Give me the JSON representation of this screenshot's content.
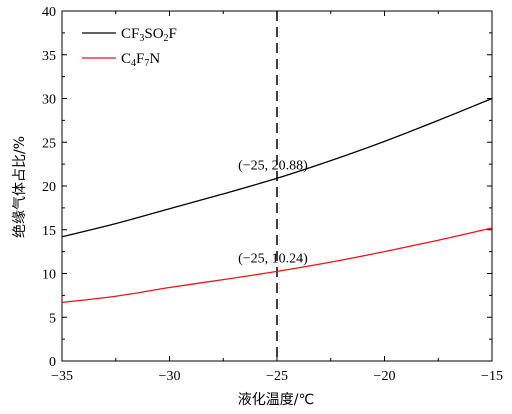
{
  "chart_data": {
    "type": "line",
    "xlabel": "液化温度/℃",
    "ylabel": "绝缘气体占比/%",
    "xlim": [
      -35,
      -15
    ],
    "ylim": [
      0,
      40
    ],
    "xticks": [
      -35,
      -30,
      -25,
      -20,
      -15
    ],
    "yticks": [
      0,
      5,
      10,
      15,
      20,
      25,
      30,
      35,
      40
    ],
    "xtick_labels": [
      "−35",
      "−30",
      "−25",
      "−20",
      "−15"
    ],
    "grid": false,
    "legend_position": "top-left",
    "series": [
      {
        "name": "CF3SO2F",
        "name_parts": {
          "a": "CF",
          "a_sub": "3",
          "b": "SO",
          "b_sub": "2",
          "c": "F"
        },
        "color": "#000000",
        "x": [
          -35,
          -32.5,
          -30,
          -27.5,
          -25,
          -22.5,
          -20,
          -17.5,
          -15
        ],
        "y": [
          14.2,
          15.7,
          17.4,
          19.1,
          20.88,
          22.9,
          25.1,
          27.5,
          30.0
        ]
      },
      {
        "name": "C4F7N",
        "name_parts": {
          "a": "C",
          "a_sub": "4",
          "b": "F",
          "b_sub": "7",
          "c": "N"
        },
        "color": "#e8141a",
        "x": [
          -35,
          -32.5,
          -30,
          -27.5,
          -25,
          -22.5,
          -20,
          -17.5,
          -15
        ],
        "y": [
          6.7,
          7.4,
          8.4,
          9.3,
          10.24,
          11.3,
          12.5,
          13.8,
          15.2
        ]
      }
    ],
    "reference_line": {
      "x": -25,
      "style": "dashed",
      "color": "#000000"
    },
    "annotations": [
      {
        "text": "(−25, 20.88)",
        "x": -25,
        "y": 20.88
      },
      {
        "text": "(−25, 10.24)",
        "x": -25,
        "y": 10.24
      }
    ]
  }
}
